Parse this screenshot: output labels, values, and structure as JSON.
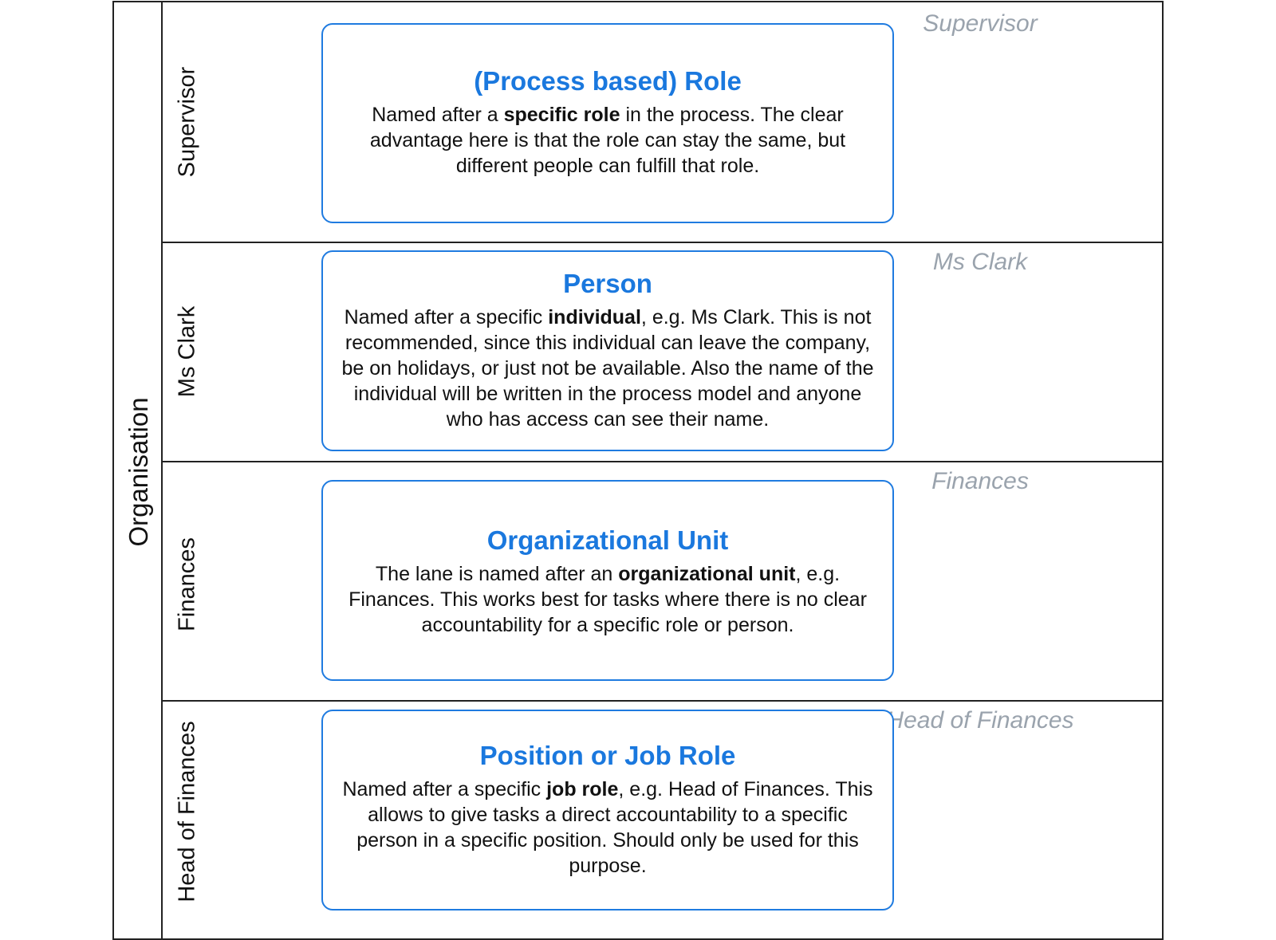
{
  "pool": {
    "label": "Organisation"
  },
  "lanes": [
    {
      "name": "Supervisor",
      "ghost_label": "Supervisor",
      "card": {
        "title": "(Process based) Role",
        "body_before": "Named after a ",
        "body_bold": "specific role",
        "body_after": " in the process. The clear advantage here is that the role can stay the same, but different people can fulfill that role."
      }
    },
    {
      "name": "Ms Clark",
      "ghost_label": "Ms Clark",
      "card": {
        "title": "Person",
        "body_before": "Named after a specific ",
        "body_bold": "individual",
        "body_after": ", e.g. Ms Clark. This is not recommended, since this individual can leave the company, be on holidays, or just not be available. Also the name of the individual will be written in the process model and anyone who has access can see their name."
      }
    },
    {
      "name": "Finances",
      "ghost_label": "Finances",
      "card": {
        "title": "Organizational Unit",
        "body_before": "The lane is named after an ",
        "body_bold": "organizational unit",
        "body_after": ", e.g. Finances. This works best for tasks where there is no clear accountability for a specific role or person."
      }
    },
    {
      "name": "Head of Finances",
      "ghost_label": "Head of Finances",
      "card": {
        "title": "Position or Job Role",
        "body_before": "Named after a specific ",
        "body_bold": "job role",
        "body_after": ", e.g. Head of Finances. This allows to give tasks a direct accountability to a specific person in a specific position. Should only be used for this purpose."
      }
    }
  ],
  "colors": {
    "accent": "#1a78de",
    "ghost": "#9aa3ad",
    "border": "#222222"
  }
}
